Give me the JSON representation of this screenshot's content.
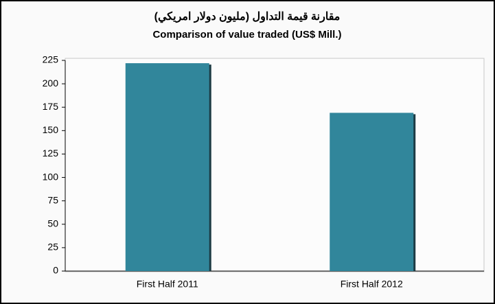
{
  "chart_data": {
    "type": "bar",
    "title": "مقارنة قيمة التداول  (مليون دولار امريكي)",
    "subtitle": "Comparison of value  traded  (US$ Mill.)",
    "categories": [
      "First Half 2011",
      "First Half 2012"
    ],
    "values": [
      222,
      169
    ],
    "color": "#31869b",
    "ylim": [
      0,
      225
    ],
    "yticks": [
      0,
      25,
      50,
      75,
      100,
      125,
      150,
      175,
      200,
      225
    ],
    "grid": false
  }
}
